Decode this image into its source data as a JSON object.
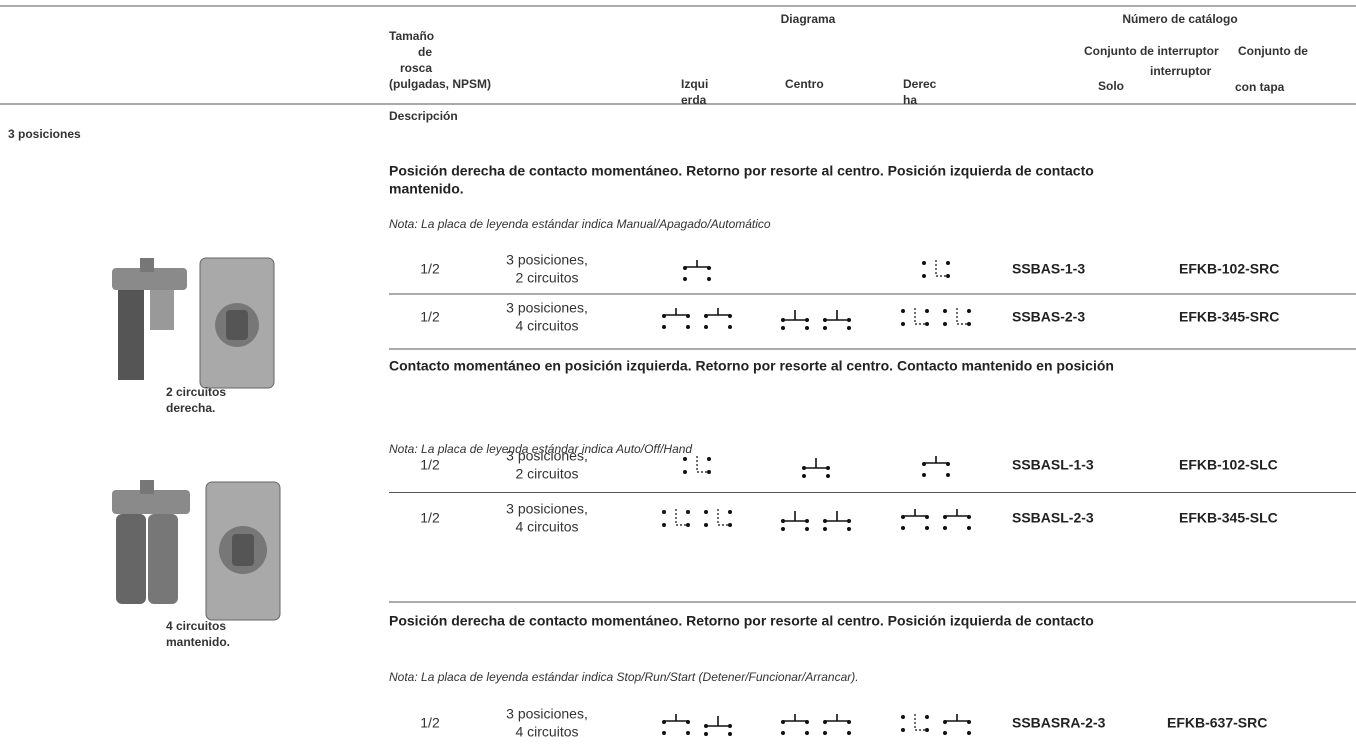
{
  "header": {
    "size_label": [
      "Tamaño",
      "de",
      "rosca",
      "(pulgadas, NPSM)"
    ],
    "description_label": "Descripción",
    "diagram_label": "Diagrama",
    "left_label": [
      "Izqui",
      "erda"
    ],
    "center_label": "Centro",
    "right_label": [
      "Derec",
      "ha"
    ],
    "catalog_label": "Número de catálogo",
    "assembly_label": "Conjunto de interruptor",
    "solo_label": "Solo",
    "covered_label": [
      "Conjunto de",
      "interruptor",
      "con tapa"
    ]
  },
  "group_title": "3 posiciones",
  "images": [
    {
      "caption": [
        "2 circuitos",
        "derecha."
      ]
    },
    {
      "caption": [
        "4 circuitos",
        "mantenido."
      ]
    }
  ],
  "sections": [
    {
      "heading": [
        "Posición derecha de contacto momentáneo. Retorno por resorte al centro. Posición izquierda de contacto",
        "mantenido."
      ],
      "note": "Nota: La placa de leyenda estándar indica Manual/Apagado/Automático",
      "rows": [
        {
          "size": "1/2",
          "description": [
            "3 posiciones,",
            "2 circuitos"
          ],
          "solo": "SSBAS-1-3",
          "covered": "EFKB-102-SRC"
        },
        {
          "size": "1/2",
          "description": [
            "3 posiciones,",
            "4 circuitos"
          ],
          "solo": "SSBAS-2-3",
          "covered": "EFKB-345-SRC"
        }
      ]
    },
    {
      "heading": [
        "Contacto momentáneo en posición izquierda. Retorno por resorte al centro. Contacto mantenido en posición"
      ],
      "note": "Nota: La placa de leyenda estándar indica Auto/Off/Hand",
      "rows": [
        {
          "size": "1/2",
          "description": [
            "3 posiciones,",
            "2 circuitos"
          ],
          "solo": "SSBASL-1-3",
          "covered": "EFKB-102-SLC"
        },
        {
          "size": "1/2",
          "description": [
            "3 posiciones,",
            "4 circuitos"
          ],
          "solo": "SSBASL-2-3",
          "covered": "EFKB-345-SLC"
        }
      ]
    },
    {
      "heading": [
        "Posición derecha de contacto momentáneo. Retorno por resorte al centro. Posición izquierda de contacto"
      ],
      "note": "Nota: La placa de leyenda estándar indica Stop/Run/Start (Detener/Funcionar/Arrancar).",
      "rows": [
        {
          "size": "1/2",
          "description": [
            "3 posiciones,",
            "4 circuitos"
          ],
          "solo": "SSBASRA-2-3",
          "covered": "EFKB-637-SRC"
        }
      ]
    }
  ]
}
